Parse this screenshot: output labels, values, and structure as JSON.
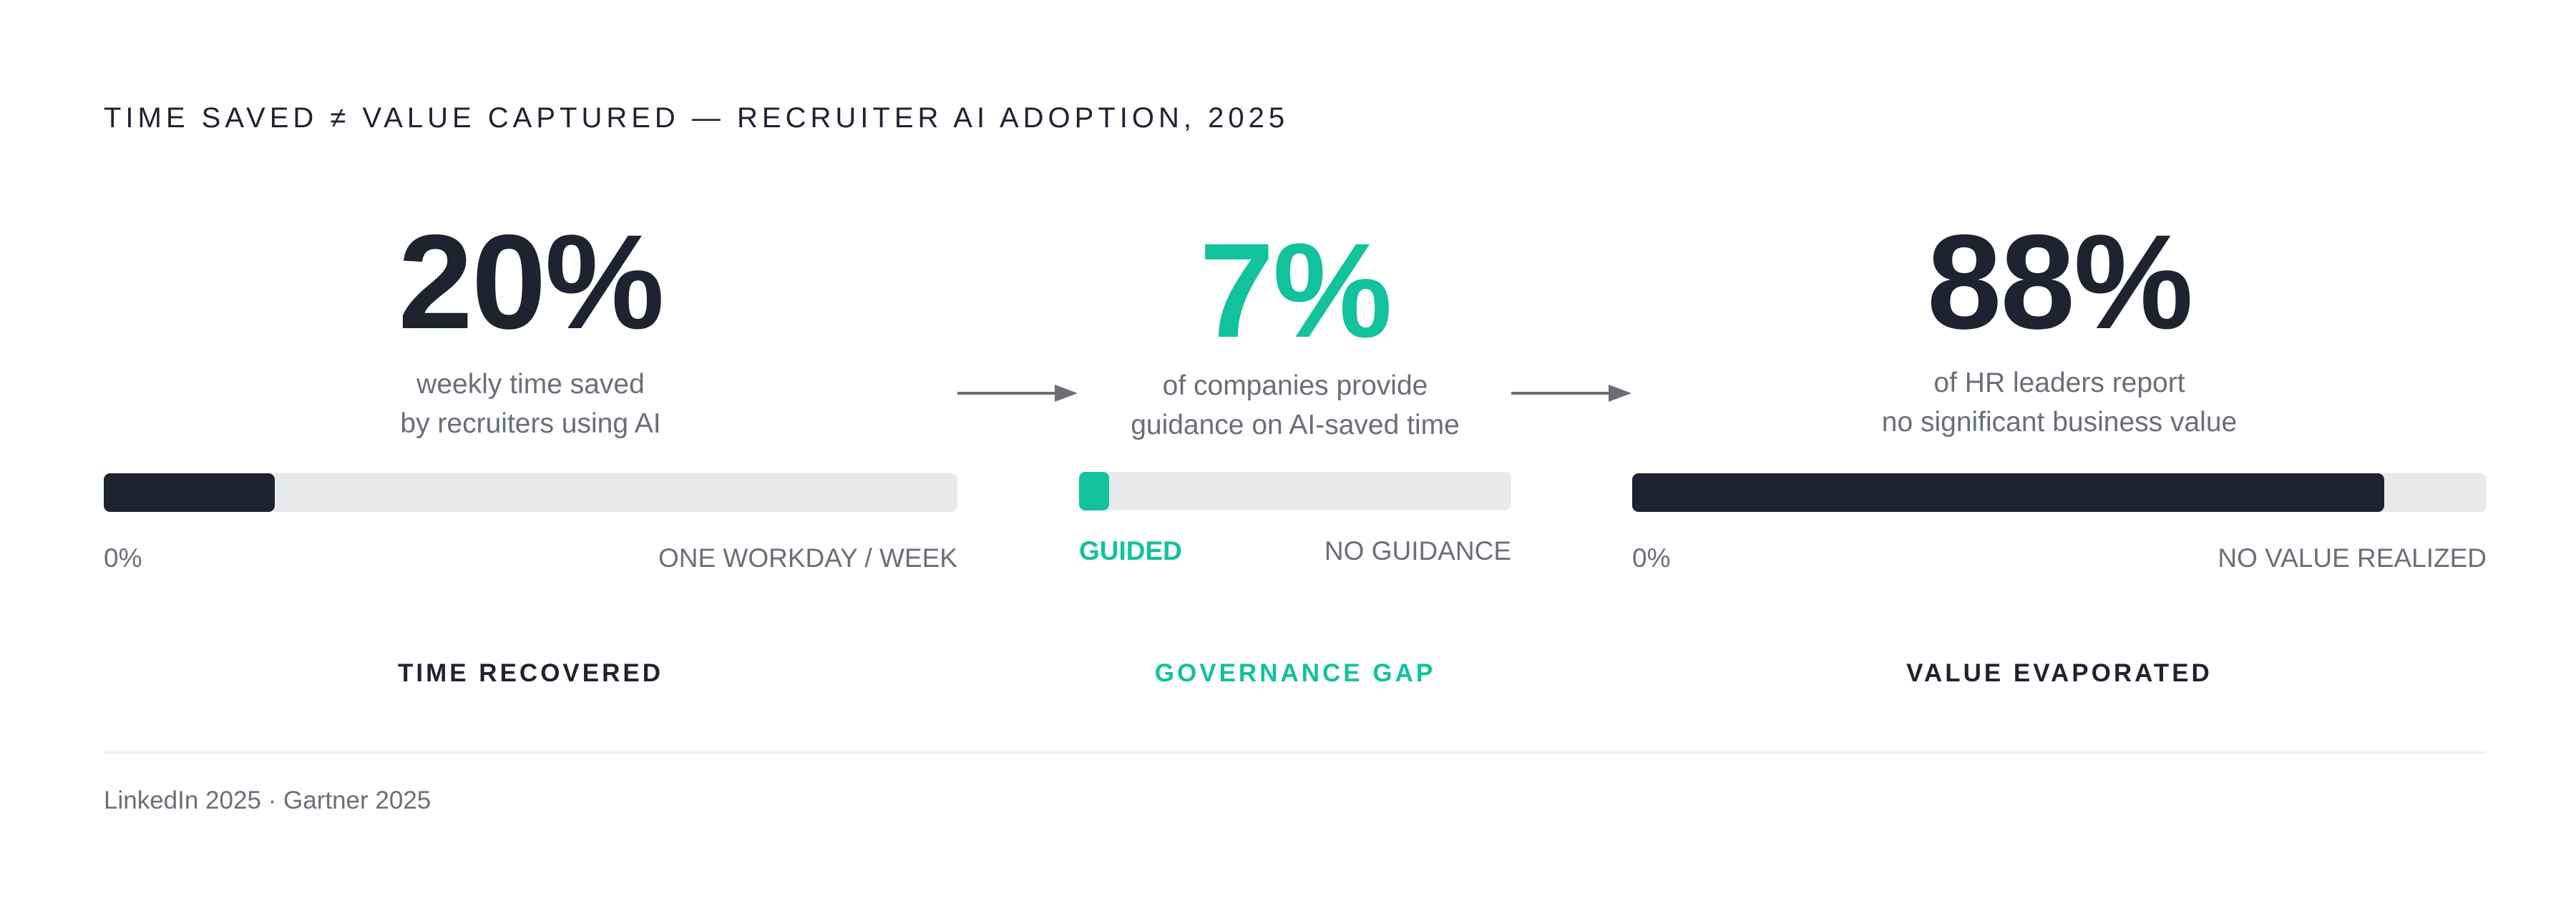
{
  "title": "TIME SAVED ≠ VALUE CAPTURED — RECRUITER AI ADOPTION, 2025",
  "source": "LinkedIn 2025 · Gartner 2025",
  "colors": {
    "dark": "#1f2330",
    "accent": "#11c29d",
    "track": "#e8e9ea",
    "muted": "#6a6e78",
    "arrow": "#6b6e74"
  },
  "chart_data": {
    "type": "bar",
    "panels": [
      {
        "id": "time",
        "value": 20,
        "value_label": "20%",
        "subtitle_line1": "weekly time saved",
        "subtitle_line2": "by recruiters using AI",
        "scale_min_label": "0%",
        "scale_max_label": "ONE WORKDAY / WEEK",
        "category": "TIME RECOVERED",
        "accent": false
      },
      {
        "id": "guide",
        "value": 7,
        "value_label": "7%",
        "subtitle_line1": "of companies provide",
        "subtitle_line2": "guidance on AI-saved time",
        "scale_min_label": "GUIDED",
        "scale_max_label": "NO GUIDANCE",
        "category": "GOVERNANCE GAP",
        "accent": true
      },
      {
        "id": "value",
        "value": 88,
        "value_label": "88%",
        "subtitle_line1": "of HR leaders report",
        "subtitle_line2": "no significant business value",
        "scale_min_label": "0%",
        "scale_max_label": "NO VALUE REALIZED",
        "category": "VALUE EVAPORATED",
        "accent": false
      }
    ],
    "ylim": [
      0,
      100
    ]
  }
}
